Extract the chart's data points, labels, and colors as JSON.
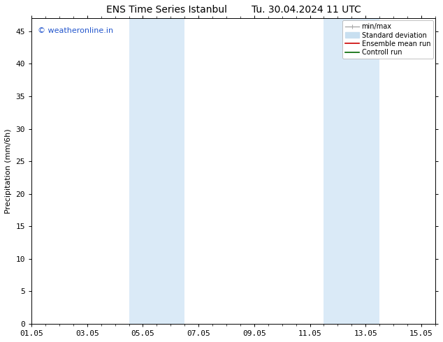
{
  "title_left": "ENS Time Series Istanbul",
  "title_right": "Tu. 30.04.2024 11 UTC",
  "ylabel": "Precipitation (mm/6h)",
  "xtick_positions": [
    0,
    2,
    4,
    6,
    8,
    10,
    12,
    14
  ],
  "xtick_labels": [
    "01.05",
    "03.05",
    "05.05",
    "07.05",
    "09.05",
    "11.05",
    "13.05",
    "15.05"
  ],
  "ylim": [
    0,
    47
  ],
  "ytick_positions": [
    0,
    5,
    10,
    15,
    20,
    25,
    30,
    35,
    40,
    45
  ],
  "ytick_labels": [
    "0",
    "5",
    "10",
    "15",
    "20",
    "25",
    "30",
    "35",
    "40",
    "45"
  ],
  "bg_color": "#ffffff",
  "plot_bg_color": "#ffffff",
  "shaded_bands": [
    {
      "x_start": 3.5,
      "x_end": 5.5,
      "color": "#daeaf7"
    },
    {
      "x_start": 10.5,
      "x_end": 12.5,
      "color": "#daeaf7"
    }
  ],
  "watermark_text": "© weatheronline.in",
  "watermark_color": "#2255cc",
  "watermark_fontsize": 8,
  "title_fontsize": 10,
  "axis_label_fontsize": 8,
  "tick_fontsize": 8,
  "legend_items": [
    {
      "label": "min/max",
      "color": "#aaaaaa",
      "linestyle": "-",
      "linewidth": 1.0
    },
    {
      "label": "Standard deviation",
      "color": "#c8dff0",
      "linestyle": "-",
      "linewidth": 7
    },
    {
      "label": "Ensemble mean run",
      "color": "#cc0000",
      "linestyle": "-",
      "linewidth": 1.2
    },
    {
      "label": "Controll run",
      "color": "#006600",
      "linestyle": "-",
      "linewidth": 1.2
    }
  ],
  "xlim": [
    0,
    14
  ]
}
